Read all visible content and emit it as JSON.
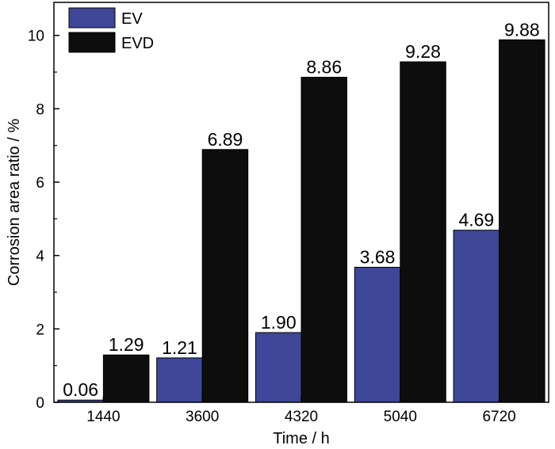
{
  "chart_data": {
    "type": "bar",
    "title": "",
    "xlabel": "Time / h",
    "ylabel": "Corrosion area ratio / %",
    "categories": [
      "1440",
      "3600",
      "4320",
      "5040",
      "6720"
    ],
    "ylim": [
      0,
      10.9
    ],
    "yticks": [
      0,
      2,
      4,
      6,
      8,
      10
    ],
    "grid": false,
    "legend_position": "top-left",
    "series": [
      {
        "name": "EV",
        "color": "#3e4797",
        "values": [
          0.06,
          1.21,
          1.9,
          3.68,
          4.69
        ],
        "labels": [
          "0.06",
          "1.21",
          "1.90",
          "3.68",
          "4.69"
        ]
      },
      {
        "name": "EVD",
        "color": "#0d0d0d",
        "values": [
          1.29,
          6.89,
          8.86,
          9.28,
          9.88
        ],
        "labels": [
          "1.29",
          "6.89",
          "8.86",
          "9.28",
          "9.88"
        ]
      }
    ]
  }
}
